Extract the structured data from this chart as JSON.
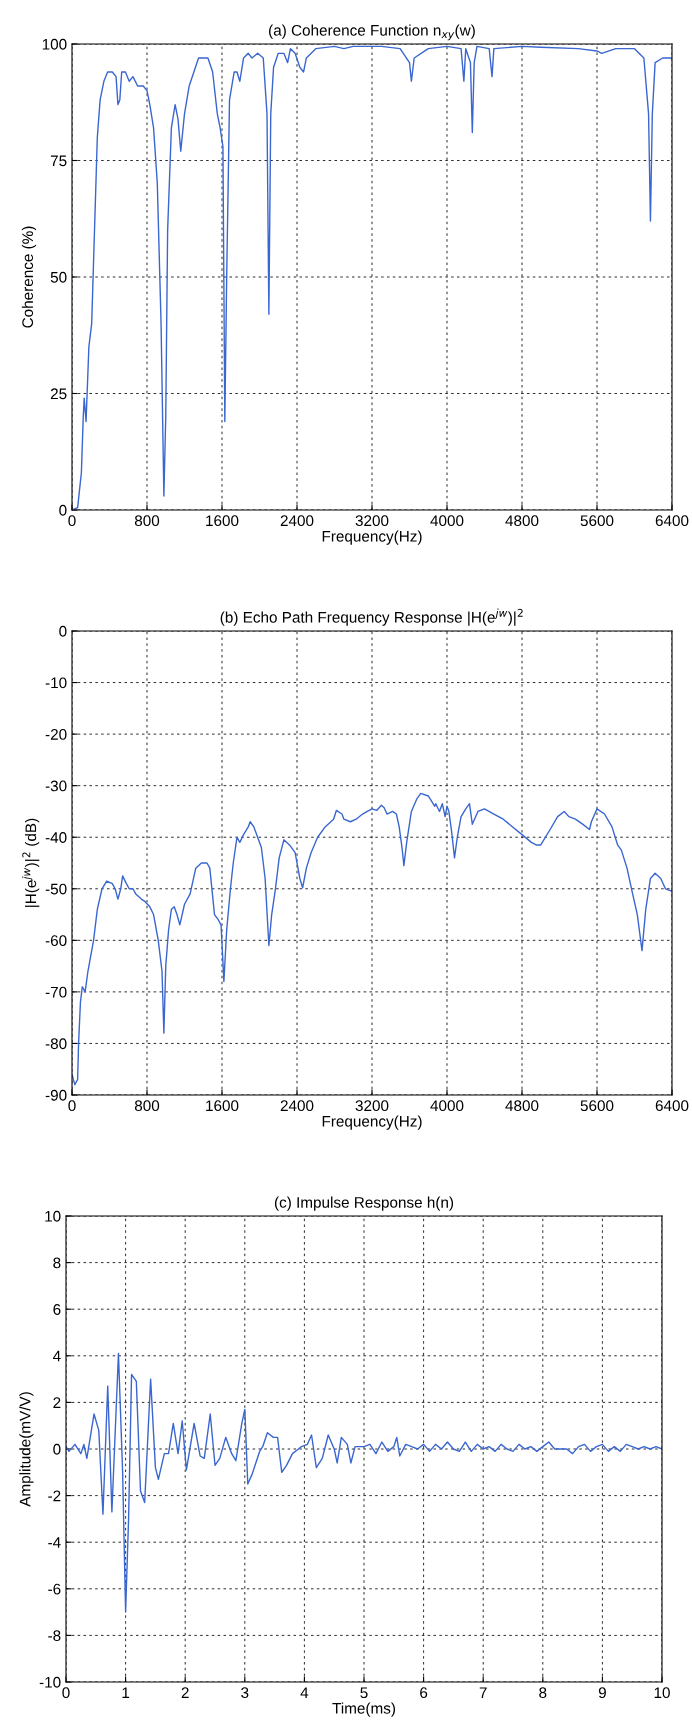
{
  "chart_data": [
    {
      "type": "line",
      "title": "(a) Coherence Function n$_{xy}$(w)",
      "xlabel": "Frequency(Hz)",
      "ylabel": "Coherence (%)",
      "x": [
        0,
        60,
        100,
        120,
        130,
        150,
        180,
        210,
        240,
        270,
        300,
        340,
        380,
        430,
        470,
        490,
        510,
        530,
        570,
        610,
        650,
        700,
        760,
        800,
        830,
        870,
        910,
        950,
        980,
        1000,
        1020,
        1060,
        1100,
        1130,
        1160,
        1200,
        1250,
        1300,
        1350,
        1450,
        1500,
        1550,
        1580,
        1610,
        1630,
        1650,
        1680,
        1730,
        1760,
        1790,
        1830,
        1880,
        1920,
        1980,
        2040,
        2080,
        2100,
        2120,
        2150,
        2200,
        2260,
        2300,
        2330,
        2380,
        2430,
        2470,
        2500,
        2600,
        2800,
        2900,
        3000,
        3300,
        3500,
        3600,
        3620,
        3650,
        3800,
        4000,
        4150,
        4180,
        4200,
        4250,
        4270,
        4290,
        4320,
        4450,
        4480,
        4500,
        4800,
        5000,
        5400,
        5600,
        5650,
        5800,
        5900,
        6000,
        6100,
        6150,
        6170,
        6190,
        6220,
        6300,
        6400
      ],
      "series": [
        {
          "color": "#3a66d0",
          "values": [
            0,
            0.5,
            8,
            20,
            24,
            19,
            35,
            40,
            60,
            80,
            88,
            92,
            94,
            94,
            93,
            87,
            88,
            94,
            94,
            92,
            93,
            91,
            91,
            90,
            87,
            82,
            70,
            40,
            3,
            20,
            60,
            82,
            87,
            84,
            77,
            85,
            91,
            94,
            97,
            97,
            94,
            85,
            82,
            78,
            19,
            50,
            88,
            94,
            94,
            92,
            97,
            98,
            97,
            98,
            97,
            85,
            42,
            85,
            95,
            98,
            98,
            96,
            99,
            98,
            95,
            94,
            97,
            99,
            99.5,
            99,
            99.5,
            99.5,
            99,
            96,
            92,
            97,
            99,
            99.5,
            99,
            92,
            99,
            96,
            81,
            96,
            99.5,
            99,
            93,
            99,
            99.5,
            99.3,
            99,
            98.5,
            98,
            99,
            99,
            99,
            97,
            85,
            62,
            85,
            96,
            97,
            97
          ]
        }
      ],
      "xlim": [
        0,
        6400
      ],
      "ylim": [
        0,
        100
      ],
      "xticks": [
        0,
        800,
        1600,
        2400,
        3200,
        4000,
        4800,
        5600,
        6400
      ],
      "yticks": [
        0,
        25,
        50,
        75,
        100
      ],
      "grid": true
    },
    {
      "type": "line",
      "title": "(b) Echo Path Frequency Response |H(e$^{jw}$)|$^{2}$",
      "xlabel": "Frequency(Hz)",
      "ylabel": "|H(e$^{jw}$)|$^{2}$ (dB)",
      "x": [
        0,
        30,
        60,
        70,
        90,
        110,
        140,
        170,
        230,
        270,
        320,
        370,
        430,
        460,
        490,
        520,
        540,
        580,
        610,
        650,
        680,
        740,
        780,
        830,
        870,
        920,
        960,
        980,
        1000,
        1030,
        1060,
        1090,
        1120,
        1150,
        1200,
        1260,
        1320,
        1380,
        1440,
        1470,
        1520,
        1560,
        1590,
        1620,
        1650,
        1690,
        1720,
        1760,
        1790,
        1830,
        1880,
        1900,
        1940,
        1980,
        2020,
        2060,
        2100,
        2130,
        2170,
        2210,
        2260,
        2320,
        2380,
        2430,
        2460,
        2500,
        2550,
        2620,
        2700,
        2790,
        2820,
        2880,
        2900,
        2970,
        3030,
        3100,
        3150,
        3200,
        3250,
        3300,
        3330,
        3360,
        3420,
        3460,
        3490,
        3520,
        3540,
        3570,
        3620,
        3680,
        3720,
        3800,
        3870,
        3880,
        3920,
        3950,
        3980,
        4000,
        4020,
        4050,
        4080,
        4110,
        4150,
        4200,
        4240,
        4270,
        4330,
        4400,
        4500,
        4600,
        4700,
        4800,
        4900,
        4950,
        5000,
        5100,
        5180,
        5250,
        5300,
        5370,
        5450,
        5520,
        5540,
        5600,
        5680,
        5760,
        5820,
        5860,
        5920,
        5980,
        6030,
        6080,
        6120,
        6170,
        6220,
        6280,
        6330,
        6400
      ],
      "series": [
        {
          "color": "#3a66d0",
          "values": [
            -86,
            -88,
            -87,
            -80,
            -72,
            -69,
            -70,
            -66,
            -60,
            -54,
            -50,
            -48.5,
            -49,
            -50,
            -52,
            -50,
            -47.5,
            -49,
            -50,
            -50,
            -51,
            -52,
            -52.5,
            -53.5,
            -55,
            -60,
            -66,
            -78,
            -65,
            -58,
            -54,
            -53.5,
            -55,
            -57,
            -53,
            -51,
            -46,
            -45,
            -45,
            -46,
            -55,
            -56,
            -57,
            -68,
            -58,
            -50,
            -45,
            -40,
            -41,
            -39.5,
            -38,
            -37,
            -38,
            -40,
            -42,
            -48,
            -61,
            -55,
            -50,
            -44,
            -40.5,
            -41.5,
            -43,
            -48,
            -49.8,
            -46,
            -43,
            -40,
            -38,
            -36.5,
            -34.8,
            -35.5,
            -36.5,
            -37,
            -36.5,
            -35.5,
            -35,
            -34.5,
            -34.8,
            -33.8,
            -34.3,
            -35.5,
            -35,
            -35.5,
            -38,
            -42,
            -45.5,
            -41,
            -35,
            -32.5,
            -31.5,
            -32,
            -34,
            -33.5,
            -35,
            -33.5,
            -36,
            -34,
            -35,
            -39,
            -44,
            -40,
            -36,
            -34.5,
            -33.5,
            -37.5,
            -35,
            -34.5,
            -35.5,
            -36.5,
            -38,
            -39.5,
            -41,
            -41.5,
            -41.5,
            -38.5,
            -36,
            -35,
            -36,
            -36.5,
            -37.5,
            -38.5,
            -37,
            -34.5,
            -35.5,
            -38,
            -41.5,
            -42.5,
            -46,
            -51,
            -55,
            -62,
            -54,
            -48,
            -47,
            -48,
            -50,
            -50.5
          ]
        }
      ],
      "xlim": [
        0,
        6400
      ],
      "ylim": [
        -90,
        0
      ],
      "xticks": [
        0,
        800,
        1600,
        2400,
        3200,
        4000,
        4800,
        5600,
        6400
      ],
      "yticks": [
        -90,
        -80,
        -70,
        -60,
        -50,
        -40,
        -30,
        -20,
        -10,
        0
      ],
      "grid": true
    },
    {
      "type": "line",
      "title": "(c) Impulse Response h(n)",
      "xlabel": "Time(ms)",
      "ylabel": "Amplitude(mV/V)",
      "x": [
        0,
        0.05,
        0.15,
        0.25,
        0.3,
        0.35,
        0.47,
        0.55,
        0.62,
        0.7,
        0.77,
        0.88,
        0.95,
        1.0,
        1.05,
        1.1,
        1.18,
        1.25,
        1.32,
        1.42,
        1.5,
        1.55,
        1.65,
        1.72,
        1.8,
        1.88,
        1.95,
        2.02,
        2.15,
        2.25,
        2.32,
        2.42,
        2.5,
        2.58,
        2.68,
        2.78,
        2.85,
        2.95,
        3.0,
        3.05,
        3.12,
        3.25,
        3.3,
        3.38,
        3.48,
        3.55,
        3.62,
        3.7,
        3.8,
        3.9,
        3.95,
        4.05,
        4.12,
        4.2,
        4.3,
        4.4,
        4.5,
        4.55,
        4.62,
        4.72,
        4.78,
        4.85,
        5.0,
        5.1,
        5.2,
        5.3,
        5.4,
        5.5,
        5.55,
        5.6,
        5.7,
        5.8,
        5.9,
        6.0,
        6.1,
        6.2,
        6.3,
        6.4,
        6.5,
        6.6,
        6.7,
        6.8,
        6.9,
        7.0,
        7.1,
        7.2,
        7.3,
        7.4,
        7.5,
        7.6,
        7.7,
        7.8,
        7.9,
        8.0,
        8.1,
        8.2,
        8.4,
        8.5,
        8.6,
        8.7,
        8.8,
        8.9,
        9.0,
        9.1,
        9.2,
        9.3,
        9.4,
        9.5,
        9.6,
        9.7,
        9.8,
        9.9,
        10
      ],
      "series": [
        {
          "color": "#3a66d0",
          "values": [
            0.1,
            -0.1,
            0.2,
            -0.2,
            0.2,
            -0.4,
            1.5,
            0.8,
            -2.8,
            2.7,
            -2.7,
            4.1,
            -1,
            -7,
            -3,
            3.2,
            2.9,
            -1.8,
            -2.3,
            3.0,
            -0.8,
            -1.3,
            -0.2,
            -0.2,
            1.1,
            -0.2,
            1.2,
            -0.9,
            1.1,
            -0.3,
            -0.4,
            1.5,
            -0.7,
            -0.4,
            0.5,
            -0.2,
            -0.5,
            1.1,
            1.7,
            -1.5,
            -1.1,
            -0.1,
            0.1,
            0.7,
            0.5,
            0.5,
            -1.0,
            -0.7,
            -0.2,
            0,
            0.1,
            0.2,
            0.6,
            -0.8,
            -0.4,
            0.6,
            0,
            -0.6,
            0.5,
            0.2,
            -0.6,
            0.1,
            0.1,
            0.2,
            -0.2,
            0.3,
            -0.1,
            0.1,
            0.5,
            -0.3,
            0.2,
            0.1,
            0,
            0.2,
            -0.1,
            0.2,
            0,
            0.3,
            0,
            -0.1,
            0.3,
            -0.1,
            0.2,
            0,
            0.1,
            -0.1,
            0.2,
            0,
            -0.1,
            0.2,
            0,
            0.1,
            -0.1,
            0.1,
            0.3,
            0,
            0,
            -0.2,
            0.1,
            0.2,
            -0.1,
            0.1,
            0.2,
            -0.1,
            0.1,
            -0.1,
            0.2,
            0.1,
            0,
            0.1,
            0,
            0.1,
            0
          ]
        }
      ],
      "xlim": [
        0,
        10
      ],
      "ylim": [
        -10,
        10
      ],
      "xticks": [
        0,
        1,
        2,
        3,
        4,
        5,
        6,
        7,
        8,
        9,
        10
      ],
      "yticks": [
        -10,
        -8,
        -6,
        -4,
        -2,
        0,
        2,
        4,
        6,
        8,
        10
      ],
      "grid": true
    }
  ]
}
